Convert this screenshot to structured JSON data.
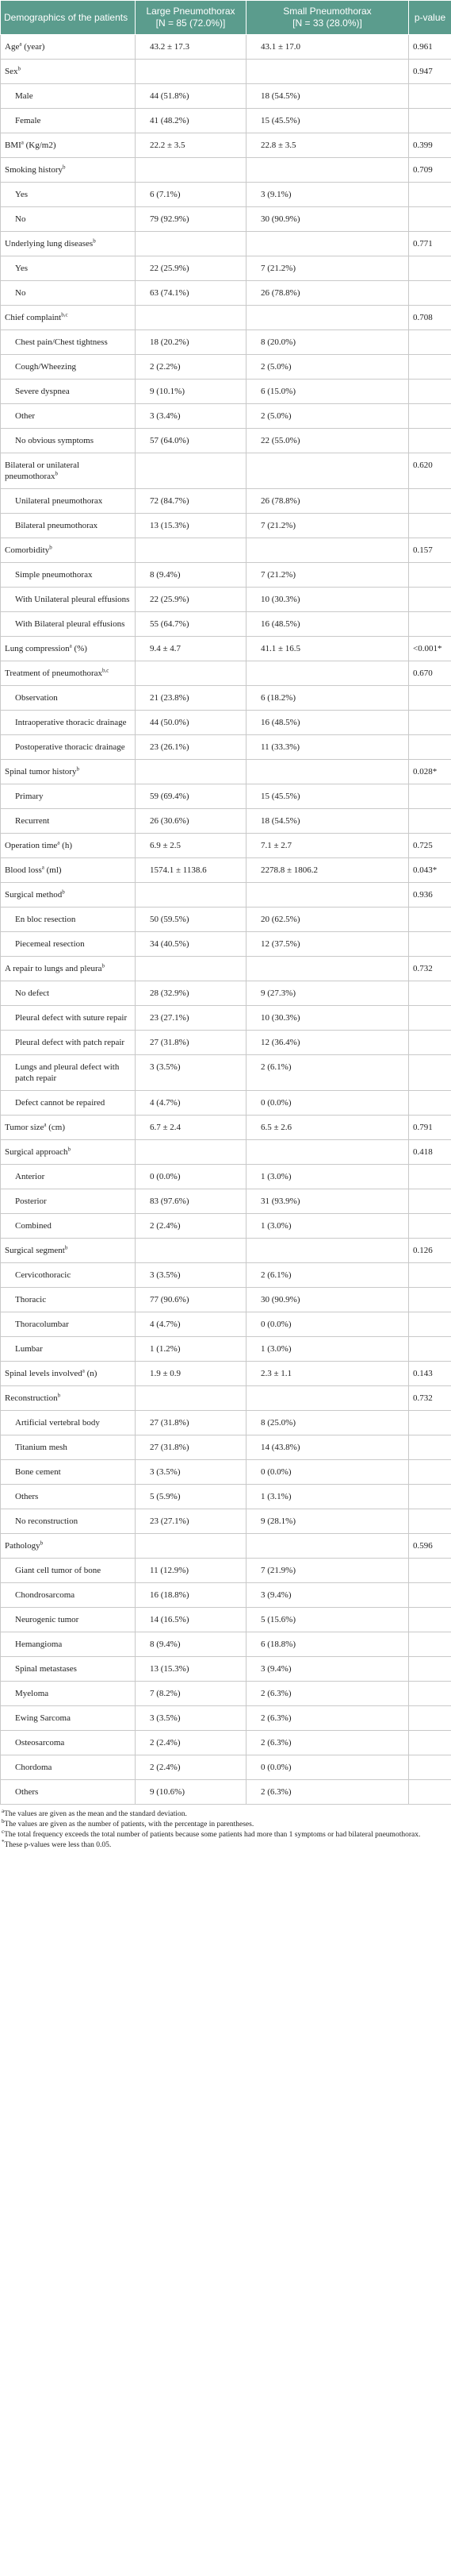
{
  "header": {
    "label": "Demographics of the patients",
    "large": {
      "title": "Large Pneumothorax",
      "n": "[N = 85 (72.0%)]"
    },
    "small": {
      "title": "Small Pneumothorax",
      "n": "[N = 33 (28.0%)]"
    },
    "p": "p-value"
  },
  "table": {
    "rows": [
      {
        "label": "Age",
        "sup": "a",
        "unit": "(year)",
        "large": "43.2 ± 17.3",
        "small": "43.1 ± 17.0",
        "p": "0.961"
      },
      {
        "label": "Sex",
        "sup": "b",
        "p": "0.947"
      },
      {
        "label": "Male",
        "large": "44 (51.8%)",
        "small": "18 (54.5%)"
      },
      {
        "label": "Female",
        "large": "41 (48.2%)",
        "small": "15 (45.5%)"
      },
      {
        "label": "BMI",
        "sup": "a",
        "unit": "(Kg/m2)",
        "large": "22.2 ± 3.5",
        "small": "22.8 ± 3.5",
        "p": "0.399"
      },
      {
        "label": "Smoking history",
        "sup": "b",
        "p": "0.709"
      },
      {
        "label": "Yes",
        "large": "6 (7.1%)",
        "small": "3 (9.1%)"
      },
      {
        "label": "No",
        "large": "79 (92.9%)",
        "small": "30 (90.9%)"
      },
      {
        "label": "Underlying lung diseases",
        "sup": "b",
        "p": "0.771"
      },
      {
        "label": "Yes",
        "large": "22 (25.9%)",
        "small": "7 (21.2%)"
      },
      {
        "label": "No",
        "large": "63 (74.1%)",
        "small": "26 (78.8%)"
      },
      {
        "label": "Chief complaint",
        "sup": "b,c",
        "p": "0.708"
      },
      {
        "label": "Chest pain/Chest tightness",
        "large": "18 (20.2%)",
        "small": "8 (20.0%)"
      },
      {
        "label": "Cough/Wheezing",
        "large": "2 (2.2%)",
        "small": "2 (5.0%)"
      },
      {
        "label": "Severe dyspnea",
        "large": "9 (10.1%)",
        "small": "6 (15.0%)"
      },
      {
        "label": "Other",
        "large": "3 (3.4%)",
        "small": "2 (5.0%)"
      },
      {
        "label": "No obvious symptoms",
        "large": "57 (64.0%)",
        "small": "22 (55.0%)"
      },
      {
        "label": "Bilateral or unilateral pneumothorax",
        "sup": "b",
        "p": "0.620"
      },
      {
        "label": "Unilateral pneumothorax",
        "large": "72 (84.7%)",
        "small": "26 (78.8%)"
      },
      {
        "label": "Bilateral pneumothorax",
        "large": "13 (15.3%)",
        "small": "7 (21.2%)"
      },
      {
        "label": "Comorbidity",
        "sup": "b",
        "p": "0.157"
      },
      {
        "label": "Simple pneumothorax",
        "large": "8 (9.4%)",
        "small": "7 (21.2%)"
      },
      {
        "label": "With Unilateral pleural effusions",
        "large": "22 (25.9%)",
        "small": "10 (30.3%)"
      },
      {
        "label": "With Bilateral pleural effusions",
        "large": "55 (64.7%)",
        "small": "16 (48.5%)"
      },
      {
        "label": "Lung compression",
        "sup": "a",
        "unit": "(%)",
        "large": "9.4 ± 4.7",
        "small": "41.1 ± 16.5",
        "p": "<0.001*"
      },
      {
        "label": "Treatment of pneumothorax",
        "sup": "b,c",
        "p": "0.670"
      },
      {
        "label": "Observation",
        "large": "21 (23.8%)",
        "small": "6 (18.2%)"
      },
      {
        "label": "Intraoperative thoracic drainage",
        "large": "44 (50.0%)",
        "small": "16 (48.5%)"
      },
      {
        "label": "Postoperative thoracic drainage",
        "large": "23 (26.1%)",
        "small": "11 (33.3%)"
      },
      {
        "label": "Spinal tumor history",
        "sup": "b",
        "p": "0.028*"
      },
      {
        "label": "Primary",
        "large": "59 (69.4%)",
        "small": "15 (45.5%)"
      },
      {
        "label": "Recurrent",
        "large": "26 (30.6%)",
        "small": "18 (54.5%)"
      },
      {
        "label": "Operation time",
        "sup": "a",
        "unit": "(h)",
        "large": "6.9 ± 2.5",
        "small": "7.1 ± 2.7",
        "p": "0.725"
      },
      {
        "label": "Blood loss",
        "sup": "a",
        "unit": "(ml)",
        "large": "1574.1 ± 1138.6",
        "small": "2278.8 ± 1806.2",
        "p": "0.043*"
      },
      {
        "label": "Surgical method",
        "sup": "b",
        "p": "0.936"
      },
      {
        "label": "En bloc resection",
        "large": "50 (59.5%)",
        "small": "20 (62.5%)"
      },
      {
        "label": "Piecemeal resection",
        "large": "34 (40.5%)",
        "small": "12 (37.5%)"
      },
      {
        "label": "A repair to lungs and pleura",
        "sup": "b",
        "p": "0.732"
      },
      {
        "label": "No defect",
        "large": "28 (32.9%)",
        "small": "9 (27.3%)"
      },
      {
        "label": "Pleural defect with suture repair",
        "large": "23 (27.1%)",
        "small": "10 (30.3%)"
      },
      {
        "label": "Pleural defect with patch repair",
        "large": "27 (31.8%)",
        "small": "12 (36.4%)"
      },
      {
        "label": "Lungs and pleural defect with patch repair",
        "large": "3 (3.5%)",
        "small": "2 (6.1%)"
      },
      {
        "label": "Defect cannot be repaired",
        "large": "4 (4.7%)",
        "small": "0 (0.0%)"
      },
      {
        "label": "Tumor size",
        "sup": "a",
        "unit": "(cm)",
        "large": "6.7 ± 2.4",
        "small": "6.5 ± 2.6",
        "p": "0.791"
      },
      {
        "label": "Surgical approach",
        "sup": "b",
        "p": "0.418"
      },
      {
        "label": "Anterior",
        "large": "0 (0.0%)",
        "small": "1 (3.0%)"
      },
      {
        "label": "Posterior",
        "large": "83 (97.6%)",
        "small": "31 (93.9%)"
      },
      {
        "label": "Combined",
        "large": "2 (2.4%)",
        "small": "1 (3.0%)"
      },
      {
        "label": "Surgical segment",
        "sup": "b",
        "p": "0.126"
      },
      {
        "label": "Cervicothoracic",
        "large": "3 (3.5%)",
        "small": "2 (6.1%)"
      },
      {
        "label": "Thoracic",
        "large": "77 (90.6%)",
        "small": "30 (90.9%)"
      },
      {
        "label": "Thoracolumbar",
        "large": "4 (4.7%)",
        "small": "0 (0.0%)"
      },
      {
        "label": "Lumbar",
        "large": "1 (1.2%)",
        "small": "1 (3.0%)"
      },
      {
        "label": "Spinal levels involved",
        "sup": "a",
        "unit": "(n)",
        "large": "1.9 ± 0.9",
        "small": "2.3 ± 1.1",
        "p": "0.143"
      },
      {
        "label": "Reconstruction",
        "sup": "b",
        "p": "0.732"
      },
      {
        "label": "Artificial vertebral body",
        "large": "27 (31.8%)",
        "small": "8 (25.0%)"
      },
      {
        "label": "Titanium mesh",
        "large": "27 (31.8%)",
        "small": "14 (43.8%)"
      },
      {
        "label": "Bone cement",
        "large": "3 (3.5%)",
        "small": "0 (0.0%)"
      },
      {
        "label": "Others",
        "large": "5 (5.9%)",
        "small": "1 (3.1%)"
      },
      {
        "label": "No reconstruction",
        "large": "23 (27.1%)",
        "small": "9 (28.1%)"
      },
      {
        "label": "Pathology",
        "sup": "b",
        "p": "0.596"
      },
      {
        "label": "Giant cell tumor of bone",
        "large": "11 (12.9%)",
        "small": "7 (21.9%)"
      },
      {
        "label": "Chondrosarcoma",
        "large": "16 (18.8%)",
        "small": "3 (9.4%)"
      },
      {
        "label": "Neurogenic tumor",
        "large": "14 (16.5%)",
        "small": "5 (15.6%)"
      },
      {
        "label": "Hemangioma",
        "large": "8 (9.4%)",
        "small": "6 (18.8%)"
      },
      {
        "label": "Spinal metastases",
        "large": "13 (15.3%)",
        "small": "3 (9.4%)"
      },
      {
        "label": "Myeloma",
        "large": "7 (8.2%)",
        "small": "2 (6.3%)"
      },
      {
        "label": "Ewing Sarcoma",
        "large": "3 (3.5%)",
        "small": "2 (6.3%)"
      },
      {
        "label": "Osteosarcoma",
        "large": "2 (2.4%)",
        "small": "2 (6.3%)"
      },
      {
        "label": "Chordoma",
        "large": "2 (2.4%)",
        "small": "0 (0.0%)"
      },
      {
        "label": "Others",
        "large": "9 (10.6%)",
        "small": "2 (6.3%)"
      }
    ]
  },
  "footnotes": [
    {
      "mark": "a",
      "text": "The values are given as the mean and the standard deviation."
    },
    {
      "mark": "b",
      "text": "The values are given as the number of patients, with the percentage in parentheses."
    },
    {
      "mark": "c",
      "text": "The total frequency exceeds the total number of patients because some patients had more than 1 symptoms or had bilateral pneumothorax."
    },
    {
      "mark": "*",
      "text": "These p-values were less than 0.05."
    }
  ]
}
